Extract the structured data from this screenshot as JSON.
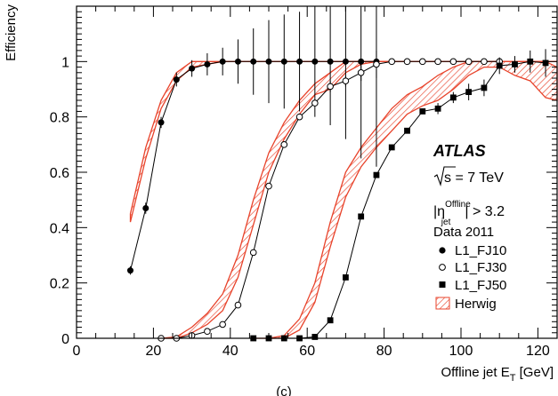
{
  "chart_data": {
    "type": "scatter",
    "xlabel_main": "Offline jet E",
    "xlabel_sub": "T",
    "xlabel_unit": " [GeV]",
    "ylabel": "Efficiency",
    "xlim": [
      0,
      125
    ],
    "ylim": [
      0,
      1.2
    ],
    "x_ticks": [
      0,
      20,
      40,
      60,
      80,
      100,
      120
    ],
    "y_ticks": [
      0,
      0.2,
      0.4,
      0.6,
      0.8,
      1
    ],
    "grid": false,
    "legend_position": "right",
    "annotations": {
      "experiment": "ATLAS",
      "energy_sqrt": "s",
      "energy_rest": " = 7 TeV",
      "eta_main": "|η",
      "eta_sup": "Offline",
      "eta_sub": "jet",
      "eta_rest": "| > 3.2",
      "dataset": "Data 2011",
      "panel_label": "(c)"
    },
    "series": [
      {
        "name": "L1_FJ10",
        "marker": "filled-circle",
        "points": [
          [
            14,
            0.245,
            0.015
          ],
          [
            18,
            0.47,
            0.02
          ],
          [
            22,
            0.78,
            0.02
          ],
          [
            26,
            0.935,
            0.025
          ],
          [
            30,
            0.975,
            0.03
          ],
          [
            34,
            0.99,
            0.04
          ],
          [
            38,
            1.0,
            0.05
          ],
          [
            42,
            1.0,
            0.08
          ],
          [
            46,
            1.0,
            0.12
          ],
          [
            50,
            1.0,
            0.15
          ],
          [
            54,
            1.0,
            0.17
          ],
          [
            58,
            1.0,
            0.18
          ],
          [
            62,
            1.0,
            0.2
          ],
          [
            66,
            1.0,
            0.23
          ],
          [
            70,
            1.0,
            0.28
          ],
          [
            74,
            1.0,
            0.35
          ],
          [
            78,
            1.0,
            0.38
          ]
        ]
      },
      {
        "name": "L1_FJ30",
        "marker": "open-circle",
        "points": [
          [
            22,
            0.0,
            0
          ],
          [
            26,
            0.0,
            0
          ],
          [
            30,
            0.01,
            0
          ],
          [
            34,
            0.025,
            0
          ],
          [
            38,
            0.05,
            0
          ],
          [
            42,
            0.12,
            0
          ],
          [
            46,
            0.31,
            0
          ],
          [
            50,
            0.55,
            0
          ],
          [
            54,
            0.7,
            0
          ],
          [
            58,
            0.8,
            0
          ],
          [
            62,
            0.85,
            0
          ],
          [
            66,
            0.91,
            0.02
          ],
          [
            70,
            0.93,
            0.02
          ],
          [
            74,
            0.96,
            0.03
          ],
          [
            78,
            0.99,
            0.05
          ],
          [
            82,
            1.0,
            0
          ],
          [
            86,
            1.0,
            0
          ],
          [
            90,
            1.0,
            0
          ],
          [
            94,
            1.0,
            0
          ],
          [
            98,
            1.0,
            0
          ],
          [
            102,
            1.0,
            0
          ],
          [
            106,
            1.0,
            0
          ],
          [
            110,
            1.0,
            0
          ]
        ]
      },
      {
        "name": "L1_FJ50",
        "marker": "filled-square",
        "points": [
          [
            46,
            0.0,
            0
          ],
          [
            50,
            0.0,
            0
          ],
          [
            54,
            0.0,
            0
          ],
          [
            58,
            0.0,
            0
          ],
          [
            62,
            0.005,
            0
          ],
          [
            66,
            0.065,
            0
          ],
          [
            70,
            0.22,
            0
          ],
          [
            74,
            0.44,
            0
          ],
          [
            78,
            0.59,
            0
          ],
          [
            82,
            0.69,
            0
          ],
          [
            86,
            0.75,
            0
          ],
          [
            90,
            0.82,
            0.01
          ],
          [
            94,
            0.83,
            0.02
          ],
          [
            98,
            0.87,
            0.02
          ],
          [
            102,
            0.89,
            0.03
          ],
          [
            106,
            0.905,
            0.03
          ],
          [
            110,
            0.985,
            0.03
          ],
          [
            114,
            0.99,
            0.03
          ],
          [
            118,
            1.0,
            0.04
          ],
          [
            122,
            0.995,
            0.05
          ]
        ]
      }
    ],
    "herwig_bands": [
      {
        "name": "Herwig",
        "x": [
          14,
          18,
          22,
          26,
          30,
          34,
          38,
          42,
          46,
          50,
          54,
          58,
          62,
          66,
          70,
          74,
          78,
          82
        ],
        "lo": [
          0.42,
          0.65,
          0.83,
          0.93,
          0.98,
          0.99,
          1.0,
          1.0,
          1.0,
          1.0,
          1.0,
          1.0,
          1.0,
          1.0,
          1.0,
          1.0,
          1.0,
          1.0
        ],
        "hi": [
          0.45,
          0.69,
          0.86,
          0.96,
          1.0,
          1.0,
          1.0,
          1.0,
          1.0,
          1.0,
          1.0,
          1.0,
          1.0,
          1.0,
          1.0,
          1.0,
          1.0,
          1.0
        ]
      },
      {
        "name": "Herwig",
        "x": [
          22,
          26,
          30,
          34,
          38,
          42,
          46,
          50,
          54,
          58,
          62,
          66,
          70,
          74,
          78,
          82,
          86,
          90,
          94,
          98,
          102,
          106,
          110,
          114,
          118,
          122,
          125
        ],
        "lo": [
          0.0,
          0.0,
          0.02,
          0.05,
          0.1,
          0.22,
          0.41,
          0.6,
          0.72,
          0.81,
          0.88,
          0.9,
          0.96,
          0.99,
          1.0,
          1.0,
          1.0,
          1.0,
          1.0,
          1.0,
          1.0,
          1.0,
          1.0,
          1.0,
          1.0,
          1.0,
          1.0
        ],
        "hi": [
          0.0,
          0.005,
          0.04,
          0.09,
          0.16,
          0.3,
          0.5,
          0.67,
          0.78,
          0.86,
          0.92,
          0.96,
          1.0,
          1.0,
          1.0,
          1.0,
          1.0,
          1.0,
          1.0,
          1.0,
          1.0,
          1.0,
          1.0,
          1.0,
          1.0,
          1.0,
          1.0
        ]
      },
      {
        "name": "Herwig",
        "x": [
          46,
          50,
          54,
          58,
          62,
          66,
          70,
          74,
          78,
          82,
          86,
          90,
          94,
          98,
          102,
          106,
          110,
          114,
          118,
          122,
          125
        ],
        "lo": [
          0.0,
          0.0,
          0.0,
          0.03,
          0.13,
          0.33,
          0.51,
          0.62,
          0.69,
          0.75,
          0.81,
          0.84,
          0.86,
          0.9,
          0.95,
          0.98,
          0.98,
          0.95,
          0.93,
          0.87,
          0.86
        ],
        "hi": [
          0.0,
          0.0,
          0.01,
          0.07,
          0.2,
          0.42,
          0.6,
          0.69,
          0.76,
          0.83,
          0.88,
          0.91,
          0.95,
          0.98,
          1.0,
          1.0,
          1.0,
          1.0,
          1.0,
          1.0,
          0.98
        ]
      }
    ],
    "colors": {
      "band": "#e8432b",
      "marker": "#000000",
      "axis": "#000000"
    }
  }
}
